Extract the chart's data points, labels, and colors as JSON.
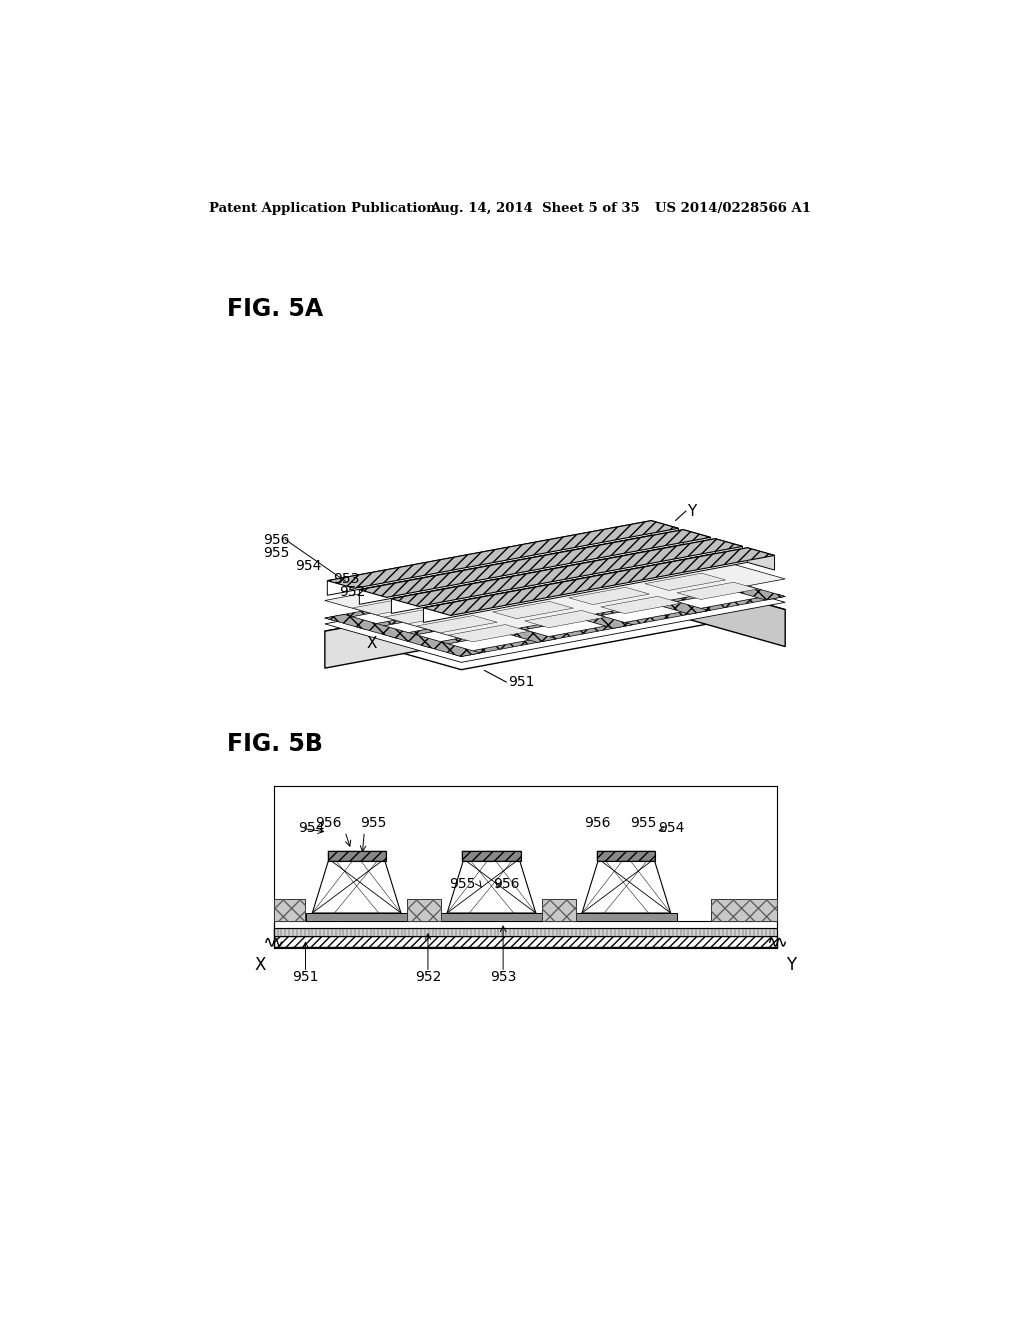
{
  "bg_color": "#ffffff",
  "header_left": "Patent Application Publication",
  "header_mid": "Aug. 14, 2014  Sheet 5 of 35",
  "header_right": "US 2014/0228566 A1",
  "fig5a_label": "FIG. 5A",
  "fig5b_label": "FIG. 5B",
  "label_951": "951",
  "label_952": "952",
  "label_953": "953",
  "label_954": "954",
  "label_955": "955",
  "label_956": "956",
  "label_X": "X",
  "label_Y": "Y"
}
